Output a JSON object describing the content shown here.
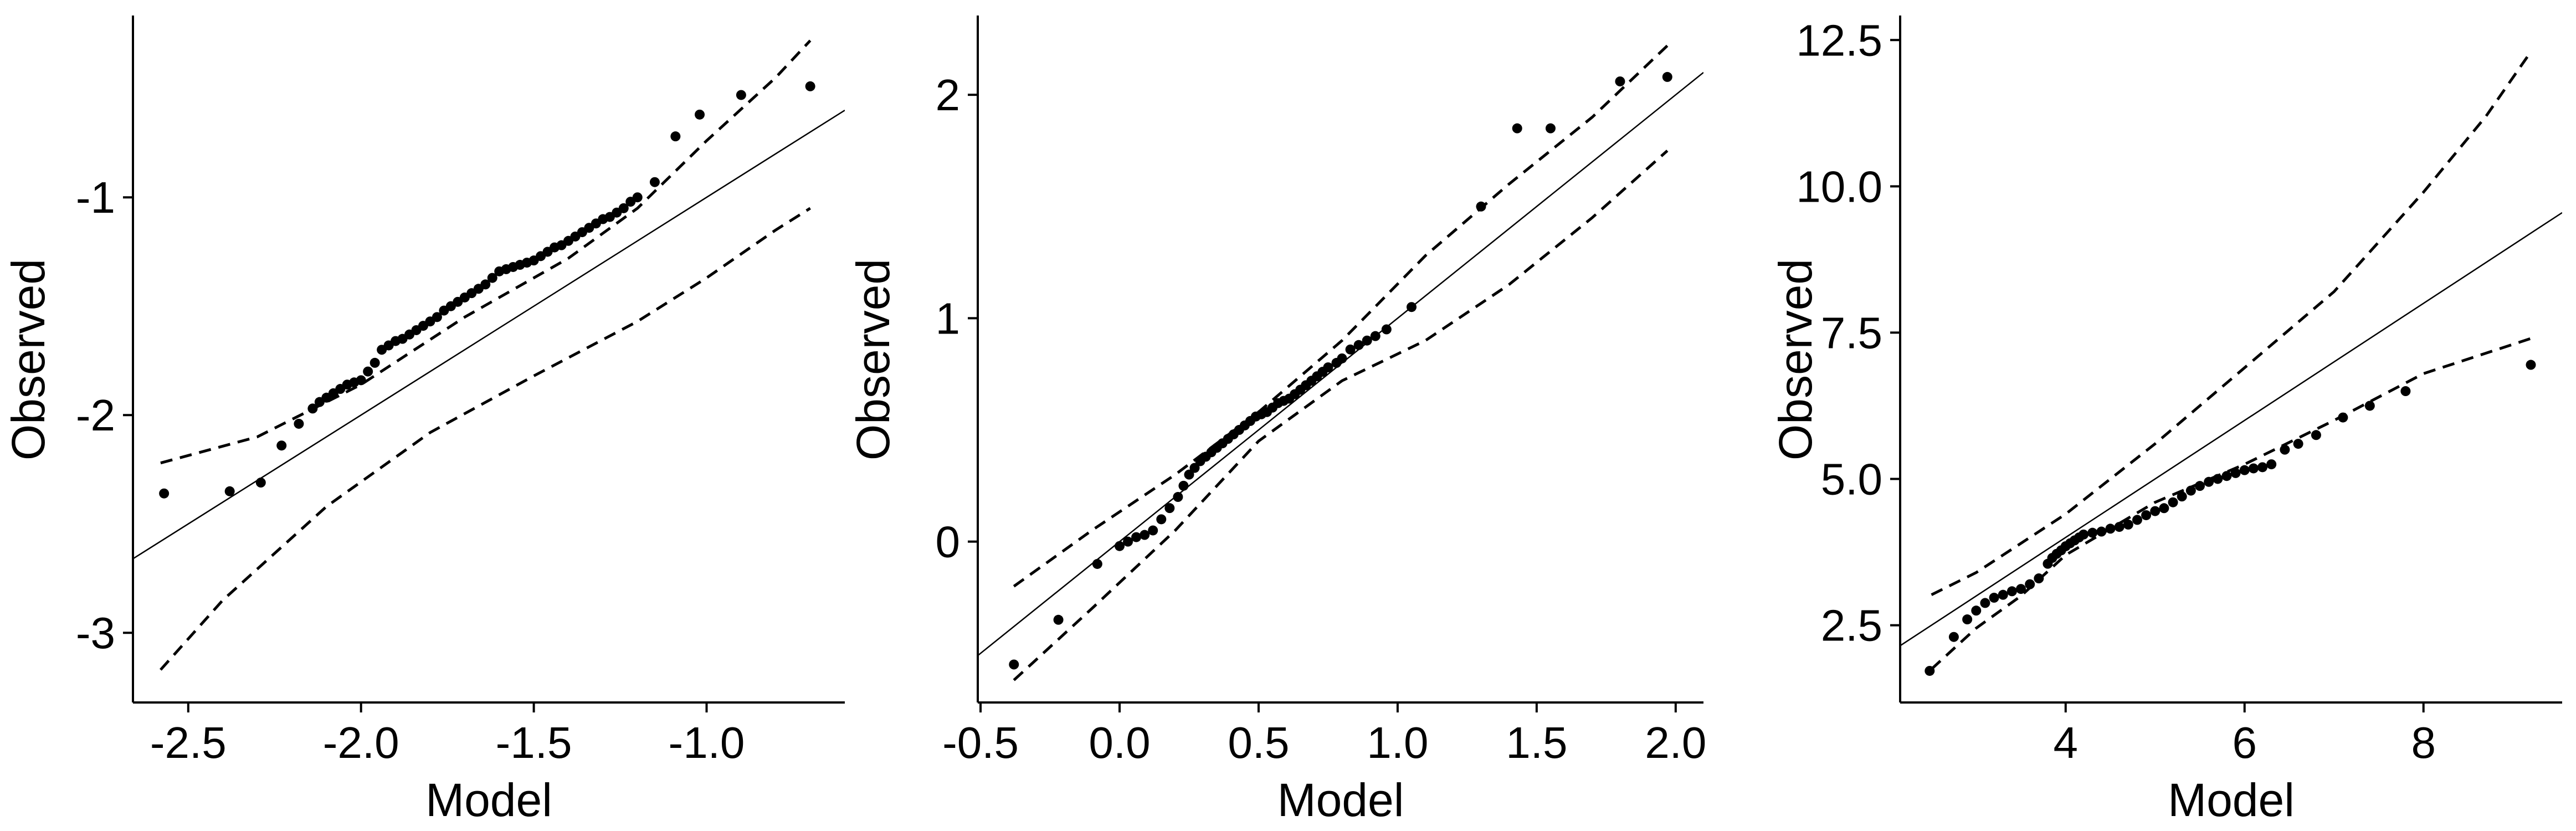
{
  "chart_data": [
    {
      "type": "scatter",
      "title": "",
      "xlabel": "Model",
      "ylabel": "Observed",
      "xlim": [
        -2.66,
        -0.6
      ],
      "ylim": [
        -3.32,
        -0.17
      ],
      "xticks": [
        -2.5,
        -2.0,
        -1.5,
        -1.0
      ],
      "xtick_labels": [
        "-2.5",
        "-2.0",
        "-1.5",
        "-1.0"
      ],
      "yticks": [
        -3,
        -2,
        -1
      ],
      "ytick_labels": [
        "-3",
        "-2",
        "-1"
      ],
      "grid": false,
      "reference_line": {
        "slope": 1,
        "intercept": 0
      },
      "band_upper": {
        "x": [
          -2.58,
          -2.3,
          -2.0,
          -1.7,
          -1.4,
          -1.2,
          -1.0,
          -0.8,
          -0.7
        ],
        "y": [
          -2.22,
          -2.1,
          -1.86,
          -1.55,
          -1.28,
          -1.05,
          -0.74,
          -0.45,
          -0.28
        ]
      },
      "band_lower": {
        "x": [
          -2.58,
          -2.4,
          -2.1,
          -1.8,
          -1.5,
          -1.2,
          -1.0,
          -0.8,
          -0.7
        ],
        "y": [
          -3.17,
          -2.85,
          -2.42,
          -2.08,
          -1.82,
          -1.57,
          -1.37,
          -1.15,
          -1.05
        ]
      },
      "series": [
        {
          "x": [
            -2.57,
            -2.38,
            -2.29,
            -2.23,
            -2.18,
            -2.14,
            -2.12,
            -2.1,
            -2.08,
            -2.06,
            -2.04,
            -2.02,
            -2.0,
            -1.98,
            -1.96,
            -1.94,
            -1.92,
            -1.9,
            -1.88,
            -1.86,
            -1.84,
            -1.82,
            -1.8,
            -1.78,
            -1.76,
            -1.74,
            -1.72,
            -1.7,
            -1.68,
            -1.66,
            -1.64,
            -1.62,
            -1.6,
            -1.58,
            -1.56,
            -1.54,
            -1.52,
            -1.5,
            -1.48,
            -1.46,
            -1.44,
            -1.42,
            -1.4,
            -1.38,
            -1.36,
            -1.34,
            -1.32,
            -1.3,
            -1.28,
            -1.26,
            -1.24,
            -1.22,
            -1.2,
            -1.15,
            -1.09,
            -1.02,
            -0.9,
            -0.7
          ],
          "y": [
            -2.36,
            -2.35,
            -2.31,
            -2.14,
            -2.04,
            -1.97,
            -1.94,
            -1.92,
            -1.9,
            -1.88,
            -1.86,
            -1.85,
            -1.84,
            -1.8,
            -1.76,
            -1.7,
            -1.68,
            -1.66,
            -1.65,
            -1.63,
            -1.61,
            -1.59,
            -1.57,
            -1.55,
            -1.52,
            -1.5,
            -1.48,
            -1.46,
            -1.44,
            -1.42,
            -1.4,
            -1.37,
            -1.34,
            -1.33,
            -1.32,
            -1.31,
            -1.3,
            -1.29,
            -1.27,
            -1.25,
            -1.23,
            -1.22,
            -1.2,
            -1.18,
            -1.16,
            -1.14,
            -1.12,
            -1.1,
            -1.09,
            -1.07,
            -1.05,
            -1.02,
            -1.0,
            -0.93,
            -0.72,
            -0.62,
            -0.53,
            -0.49
          ]
        }
      ]
    },
    {
      "type": "scatter",
      "title": "",
      "xlabel": "Model",
      "ylabel": "Observed",
      "xlim": [
        -0.51,
        2.1
      ],
      "ylim": [
        -0.72,
        2.35
      ],
      "xticks": [
        -0.5,
        0.0,
        0.5,
        1.0,
        1.5,
        2.0
      ],
      "xtick_labels": [
        "-0.5",
        "0.0",
        "0.5",
        "1.0",
        "1.5",
        "2.0"
      ],
      "yticks": [
        0,
        1,
        2
      ],
      "ytick_labels": [
        "0",
        "1",
        "2"
      ],
      "grid": false,
      "reference_line": {
        "slope": 1,
        "intercept": 0
      },
      "band_upper": {
        "x": [
          -0.38,
          -0.1,
          0.2,
          0.5,
          0.8,
          1.1,
          1.4,
          1.7,
          1.97
        ],
        "y": [
          -0.2,
          0.05,
          0.3,
          0.58,
          0.9,
          1.28,
          1.6,
          1.9,
          2.22
        ]
      },
      "band_lower": {
        "x": [
          -0.38,
          -0.1,
          0.2,
          0.5,
          0.8,
          1.1,
          1.4,
          1.7,
          1.97
        ],
        "y": [
          -0.62,
          -0.3,
          0.05,
          0.45,
          0.72,
          0.9,
          1.15,
          1.45,
          1.75
        ]
      },
      "series": [
        {
          "x": [
            -0.38,
            -0.22,
            -0.08,
            0.0,
            0.03,
            0.06,
            0.09,
            0.12,
            0.15,
            0.18,
            0.21,
            0.23,
            0.25,
            0.27,
            0.29,
            0.31,
            0.33,
            0.35,
            0.37,
            0.39,
            0.41,
            0.43,
            0.45,
            0.47,
            0.49,
            0.51,
            0.53,
            0.55,
            0.57,
            0.59,
            0.61,
            0.63,
            0.65,
            0.67,
            0.69,
            0.71,
            0.73,
            0.75,
            0.78,
            0.8,
            0.83,
            0.86,
            0.89,
            0.92,
            0.96,
            1.05,
            1.3,
            1.43,
            1.55,
            1.8,
            1.97
          ],
          "y": [
            -0.55,
            -0.35,
            -0.1,
            -0.02,
            0.0,
            0.02,
            0.03,
            0.05,
            0.1,
            0.15,
            0.2,
            0.25,
            0.3,
            0.33,
            0.36,
            0.38,
            0.4,
            0.42,
            0.44,
            0.46,
            0.48,
            0.5,
            0.52,
            0.54,
            0.56,
            0.57,
            0.58,
            0.6,
            0.62,
            0.63,
            0.64,
            0.66,
            0.68,
            0.7,
            0.72,
            0.74,
            0.76,
            0.78,
            0.8,
            0.82,
            0.86,
            0.88,
            0.9,
            0.92,
            0.95,
            1.05,
            1.5,
            1.85,
            1.85,
            2.06,
            2.08
          ]
        }
      ]
    },
    {
      "type": "scatter",
      "title": "",
      "xlabel": "Model",
      "ylabel": "Observed",
      "xlim": [
        2.15,
        9.55
      ],
      "ylim": [
        1.18,
        12.9
      ],
      "xticks": [
        4,
        6,
        8
      ],
      "xtick_labels": [
        "4",
        "6",
        "8"
      ],
      "yticks": [
        2.5,
        5.0,
        7.5,
        10.0,
        12.5
      ],
      "ytick_labels": [
        "2.5",
        "5.0",
        "7.5",
        "10.0",
        "12.5"
      ],
      "grid": false,
      "reference_line": {
        "slope": 1,
        "intercept": 0
      },
      "band_upper": {
        "x": [
          2.5,
          3.0,
          4.0,
          5.0,
          6.0,
          7.0,
          8.0,
          8.7,
          9.2
        ],
        "y": [
          3.02,
          3.4,
          4.4,
          5.6,
          6.9,
          8.2,
          9.9,
          11.2,
          12.3
        ]
      },
      "band_lower": {
        "x": [
          2.5,
          3.0,
          3.5,
          4.0,
          5.0,
          6.0,
          7.0,
          8.0,
          9.2
        ],
        "y": [
          1.75,
          2.45,
          3.0,
          3.7,
          4.6,
          5.25,
          6.0,
          6.8,
          7.4
        ]
      },
      "series": [
        {
          "x": [
            2.48,
            2.75,
            2.9,
            3.0,
            3.1,
            3.2,
            3.3,
            3.4,
            3.5,
            3.6,
            3.7,
            3.8,
            3.85,
            3.9,
            3.95,
            4.0,
            4.05,
            4.1,
            4.15,
            4.2,
            4.3,
            4.4,
            4.5,
            4.6,
            4.7,
            4.8,
            4.9,
            5.0,
            5.1,
            5.2,
            5.3,
            5.4,
            5.5,
            5.6,
            5.7,
            5.8,
            5.9,
            6.0,
            6.1,
            6.2,
            6.3,
            6.45,
            6.6,
            6.8,
            7.1,
            7.4,
            7.8,
            9.2
          ],
          "y": [
            1.72,
            2.3,
            2.6,
            2.75,
            2.88,
            2.97,
            3.02,
            3.08,
            3.12,
            3.2,
            3.3,
            3.55,
            3.65,
            3.72,
            3.78,
            3.85,
            3.9,
            3.95,
            4.0,
            4.05,
            4.08,
            4.1,
            4.15,
            4.18,
            4.22,
            4.3,
            4.38,
            4.45,
            4.5,
            4.6,
            4.7,
            4.8,
            4.88,
            4.95,
            5.0,
            5.05,
            5.1,
            5.15,
            5.18,
            5.2,
            5.25,
            5.5,
            5.6,
            5.75,
            6.05,
            6.25,
            6.5,
            6.95
          ]
        }
      ]
    }
  ]
}
